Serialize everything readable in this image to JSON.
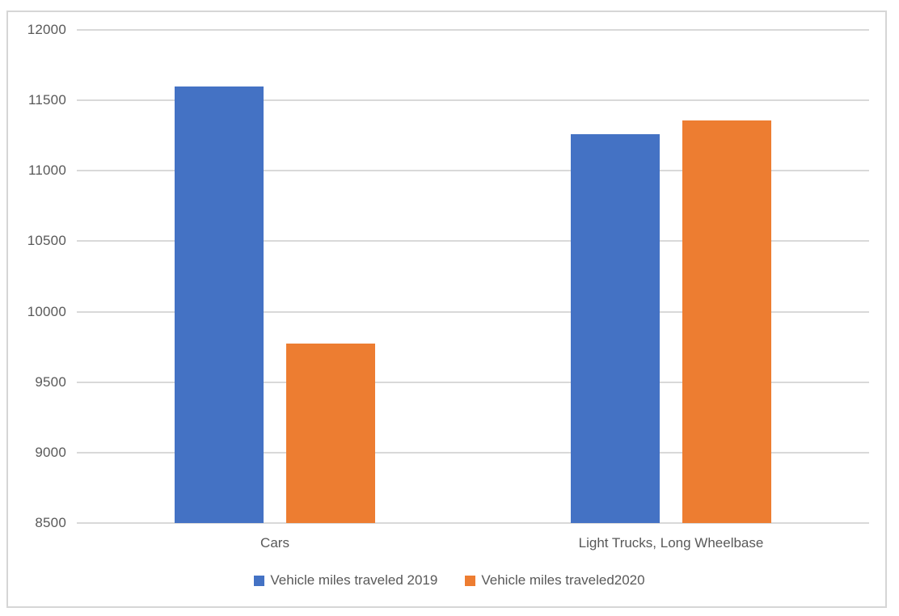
{
  "chart_data": {
    "type": "bar",
    "title": "",
    "xlabel": "",
    "ylabel": "",
    "categories": [
      "Cars",
      "Light Trucks, Long Wheelbase"
    ],
    "series": [
      {
        "name": "Vehicle miles traveled 2019",
        "color": "#4472C4",
        "values": [
          11600,
          11260
        ]
      },
      {
        "name": "Vehicle miles traveled2020",
        "color": "#ED7D31",
        "values": [
          9775,
          11355
        ]
      }
    ],
    "ylim": [
      8500,
      12000
    ],
    "ytick_step": 500,
    "yticks": [
      8500,
      9000,
      9500,
      10000,
      10500,
      11000,
      11500,
      12000
    ],
    "grid": true,
    "legend_position": "bottom"
  },
  "colors": {
    "axis_text": "#595959",
    "gridline": "#D9D9D9",
    "frame_border": "#D6D6D6",
    "background": "#FFFFFF"
  }
}
